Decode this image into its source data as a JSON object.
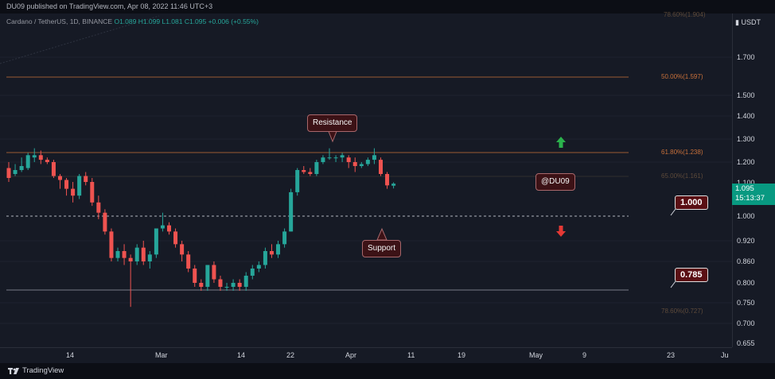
{
  "header": {
    "publisher": "DU09 published on TradingView.com, Apr 08, 2022 11:46 UTC+3"
  },
  "legend": {
    "symbol": "Cardano / TetherUS, 1D, BINANCE",
    "ohlc": "O1.089 H1.099 L1.081 C1.095 +0.006 (+0.55%)"
  },
  "price_axis": {
    "currency": "USDT",
    "ticks": [
      "1.700",
      "1.500",
      "1.400",
      "1.300",
      "1.200",
      "1.100",
      "1.000",
      "0.920",
      "0.860",
      "0.800",
      "0.750",
      "0.700",
      "0.655"
    ],
    "current_price": "1.095",
    "countdown": "15:13:37"
  },
  "time_axis": {
    "labels": [
      "14",
      "Mar",
      "14",
      "22",
      "Apr",
      "11",
      "19",
      "May",
      "9",
      "23",
      "Ju"
    ]
  },
  "fib_levels": {
    "top": "78.60%(1.904)",
    "l50": "50.00%(1.597)",
    "l618": "61.80%(1.238)",
    "l65": "65.00%(1.161)",
    "l786": "78.60%(0.727)"
  },
  "annotations": {
    "resistance": "Resistance",
    "support": "Support",
    "watermark": "@DU09",
    "tag_1": "1.000",
    "tag_2": "0.785"
  },
  "footer": {
    "brand": "TradingView"
  },
  "colors": {
    "up": "#26a69a",
    "down": "#ef5350",
    "fib": "#c8703a",
    "background": "#161a25"
  },
  "chart_data": {
    "type": "candlestick",
    "series": [
      {
        "o": 1.17,
        "h": 1.2,
        "l": 1.1,
        "c": 1.12
      },
      {
        "o": 1.14,
        "h": 1.19,
        "l": 1.13,
        "c": 1.16
      },
      {
        "o": 1.16,
        "h": 1.22,
        "l": 1.15,
        "c": 1.18
      },
      {
        "o": 1.17,
        "h": 1.24,
        "l": 1.16,
        "c": 1.23
      },
      {
        "o": 1.22,
        "h": 1.26,
        "l": 1.2,
        "c": 1.23
      },
      {
        "o": 1.23,
        "h": 1.25,
        "l": 1.19,
        "c": 1.21
      },
      {
        "o": 1.21,
        "h": 1.22,
        "l": 1.19,
        "c": 1.2
      },
      {
        "o": 1.2,
        "h": 1.21,
        "l": 1.12,
        "c": 1.13
      },
      {
        "o": 1.13,
        "h": 1.14,
        "l": 1.08,
        "c": 1.11
      },
      {
        "o": 1.11,
        "h": 1.12,
        "l": 1.06,
        "c": 1.08
      },
      {
        "o": 1.08,
        "h": 1.1,
        "l": 1.04,
        "c": 1.06
      },
      {
        "o": 1.06,
        "h": 1.14,
        "l": 1.05,
        "c": 1.13
      },
      {
        "o": 1.13,
        "h": 1.15,
        "l": 1.09,
        "c": 1.1
      },
      {
        "o": 1.1,
        "h": 1.12,
        "l": 1.03,
        "c": 1.04
      },
      {
        "o": 1.04,
        "h": 1.06,
        "l": 0.99,
        "c": 1.01
      },
      {
        "o": 1.01,
        "h": 1.02,
        "l": 0.94,
        "c": 0.95
      },
      {
        "o": 0.95,
        "h": 0.96,
        "l": 0.86,
        "c": 0.87
      },
      {
        "o": 0.87,
        "h": 0.9,
        "l": 0.86,
        "c": 0.89
      },
      {
        "o": 0.89,
        "h": 0.91,
        "l": 0.85,
        "c": 0.87
      },
      {
        "o": 0.87,
        "h": 0.88,
        "l": 0.74,
        "c": 0.86
      },
      {
        "o": 0.86,
        "h": 0.91,
        "l": 0.85,
        "c": 0.9
      },
      {
        "o": 0.9,
        "h": 0.92,
        "l": 0.85,
        "c": 0.86
      },
      {
        "o": 0.86,
        "h": 0.89,
        "l": 0.84,
        "c": 0.88
      },
      {
        "o": 0.88,
        "h": 0.96,
        "l": 0.87,
        "c": 0.96
      },
      {
        "o": 0.96,
        "h": 1.01,
        "l": 0.95,
        "c": 0.97
      },
      {
        "o": 0.97,
        "h": 0.98,
        "l": 0.94,
        "c": 0.95
      },
      {
        "o": 0.95,
        "h": 0.96,
        "l": 0.9,
        "c": 0.91
      },
      {
        "o": 0.91,
        "h": 0.92,
        "l": 0.86,
        "c": 0.88
      },
      {
        "o": 0.88,
        "h": 0.89,
        "l": 0.83,
        "c": 0.84
      },
      {
        "o": 0.84,
        "h": 0.85,
        "l": 0.79,
        "c": 0.8
      },
      {
        "o": 0.8,
        "h": 0.81,
        "l": 0.78,
        "c": 0.79
      },
      {
        "o": 0.79,
        "h": 0.85,
        "l": 0.78,
        "c": 0.85
      },
      {
        "o": 0.85,
        "h": 0.86,
        "l": 0.8,
        "c": 0.81
      },
      {
        "o": 0.81,
        "h": 0.82,
        "l": 0.78,
        "c": 0.79
      },
      {
        "o": 0.79,
        "h": 0.8,
        "l": 0.78,
        "c": 0.79
      },
      {
        "o": 0.79,
        "h": 0.81,
        "l": 0.78,
        "c": 0.8
      },
      {
        "o": 0.8,
        "h": 0.81,
        "l": 0.78,
        "c": 0.79
      },
      {
        "o": 0.79,
        "h": 0.83,
        "l": 0.78,
        "c": 0.82
      },
      {
        "o": 0.82,
        "h": 0.85,
        "l": 0.81,
        "c": 0.84
      },
      {
        "o": 0.84,
        "h": 0.86,
        "l": 0.83,
        "c": 0.85
      },
      {
        "o": 0.85,
        "h": 0.9,
        "l": 0.84,
        "c": 0.89
      },
      {
        "o": 0.89,
        "h": 0.91,
        "l": 0.87,
        "c": 0.88
      },
      {
        "o": 0.88,
        "h": 0.92,
        "l": 0.87,
        "c": 0.91
      },
      {
        "o": 0.91,
        "h": 0.96,
        "l": 0.9,
        "c": 0.95
      },
      {
        "o": 0.95,
        "h": 1.08,
        "l": 0.95,
        "c": 1.07
      },
      {
        "o": 1.07,
        "h": 1.17,
        "l": 1.06,
        "c": 1.16
      },
      {
        "o": 1.16,
        "h": 1.18,
        "l": 1.14,
        "c": 1.15
      },
      {
        "o": 1.15,
        "h": 1.17,
        "l": 1.13,
        "c": 1.14
      },
      {
        "o": 1.14,
        "h": 1.21,
        "l": 1.13,
        "c": 1.2
      },
      {
        "o": 1.2,
        "h": 1.23,
        "l": 1.19,
        "c": 1.22
      },
      {
        "o": 1.22,
        "h": 1.26,
        "l": 1.21,
        "c": 1.22
      },
      {
        "o": 1.22,
        "h": 1.23,
        "l": 1.2,
        "c": 1.22
      },
      {
        "o": 1.22,
        "h": 1.24,
        "l": 1.2,
        "c": 1.23
      },
      {
        "o": 1.22,
        "h": 1.23,
        "l": 1.17,
        "c": 1.2
      },
      {
        "o": 1.2,
        "h": 1.22,
        "l": 1.15,
        "c": 1.18
      },
      {
        "o": 1.18,
        "h": 1.2,
        "l": 1.17,
        "c": 1.19
      },
      {
        "o": 1.19,
        "h": 1.22,
        "l": 1.18,
        "c": 1.21
      },
      {
        "o": 1.21,
        "h": 1.26,
        "l": 1.19,
        "c": 1.23
      },
      {
        "o": 1.21,
        "h": 1.22,
        "l": 1.13,
        "c": 1.14
      },
      {
        "o": 1.14,
        "h": 1.15,
        "l": 1.08,
        "c": 1.09
      },
      {
        "o": 1.089,
        "h": 1.099,
        "l": 1.081,
        "c": 1.095
      }
    ]
  }
}
